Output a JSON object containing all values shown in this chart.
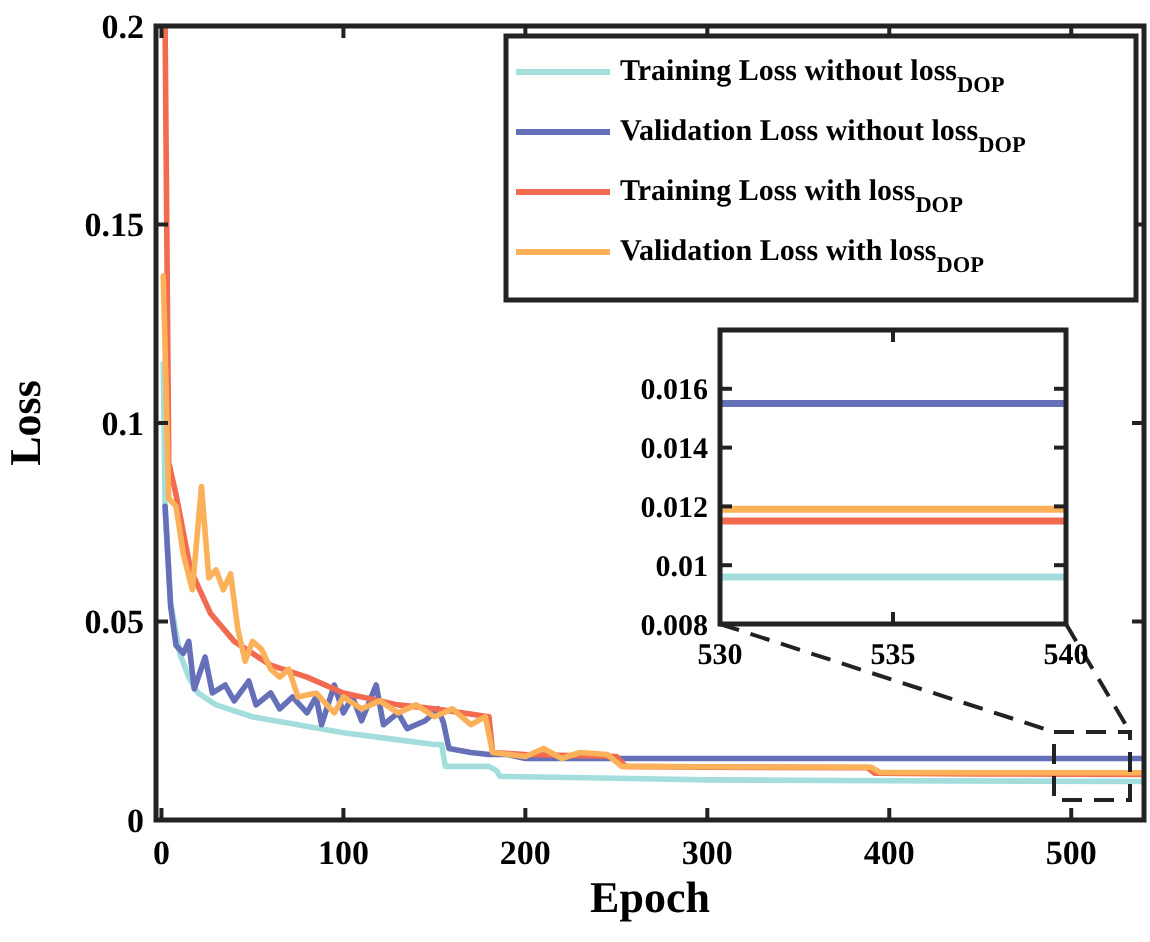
{
  "chart_data": [
    {
      "type": "line",
      "xlabel": "Epoch",
      "ylabel": "Loss",
      "xlim": [
        -3,
        540
      ],
      "ylim": [
        0,
        0.2
      ],
      "xticks": [
        0,
        100,
        200,
        300,
        400,
        500
      ],
      "yticks": [
        0,
        0.05,
        0.1,
        0.15,
        0.2
      ],
      "grid": false,
      "legend": "top right",
      "line_style": "solid",
      "series": [
        {
          "name": "Training Loss without loss$_{DOP}$",
          "color": "#a3dedd",
          "x": [
            1,
            2,
            5,
            10,
            15,
            20,
            30,
            50,
            75,
            100,
            125,
            150,
            154,
            156,
            180,
            184,
            186,
            250,
            300,
            400,
            540
          ],
          "values": [
            0.115,
            0.079,
            0.055,
            0.042,
            0.036,
            0.032,
            0.029,
            0.026,
            0.024,
            0.022,
            0.0205,
            0.019,
            0.019,
            0.0135,
            0.0135,
            0.0125,
            0.011,
            0.0105,
            0.0101,
            0.0099,
            0.0097
          ]
        },
        {
          "name": "Validation Loss without loss$_{DOP}$",
          "color": "#6670b8",
          "x": [
            2,
            5,
            8,
            12,
            15,
            18,
            24,
            28,
            35,
            40,
            48,
            52,
            60,
            65,
            72,
            80,
            85,
            88,
            95,
            100,
            105,
            110,
            118,
            122,
            130,
            135,
            145,
            152,
            155,
            158,
            170,
            180,
            190,
            200,
            300,
            400,
            540
          ],
          "values": [
            0.079,
            0.054,
            0.044,
            0.042,
            0.045,
            0.033,
            0.041,
            0.032,
            0.034,
            0.03,
            0.035,
            0.029,
            0.032,
            0.028,
            0.031,
            0.027,
            0.031,
            0.024,
            0.034,
            0.027,
            0.031,
            0.025,
            0.034,
            0.024,
            0.027,
            0.023,
            0.025,
            0.028,
            0.0245,
            0.018,
            0.017,
            0.0165,
            0.0165,
            0.0155,
            0.0155,
            0.0155,
            0.0155
          ]
        },
        {
          "name": "Training Loss with loss$_{DOP}$",
          "color": "#f26a4f",
          "x": [
            1,
            2,
            4,
            8,
            16,
            27,
            40,
            60,
            80,
            100,
            130,
            150,
            180,
            182,
            200,
            250,
            255,
            300,
            388,
            392,
            450,
            540
          ],
          "values": [
            0.2,
            0.2,
            0.09,
            0.082,
            0.063,
            0.052,
            0.045,
            0.039,
            0.036,
            0.032,
            0.029,
            0.028,
            0.026,
            0.017,
            0.0165,
            0.016,
            0.0135,
            0.0133,
            0.0132,
            0.0118,
            0.0116,
            0.0115
          ]
        },
        {
          "name": "Validation Loss with loss$_{DOP}$",
          "color": "#fbb05a",
          "x": [
            1,
            4,
            8,
            12,
            17,
            22,
            26,
            30,
            34,
            38,
            42,
            46,
            50,
            55,
            60,
            65,
            70,
            75,
            85,
            95,
            100,
            110,
            120,
            130,
            140,
            150,
            160,
            170,
            178,
            182,
            200,
            210,
            220,
            230,
            245,
            253,
            300,
            390,
            395,
            450,
            540
          ],
          "values": [
            0.137,
            0.081,
            0.079,
            0.067,
            0.058,
            0.084,
            0.061,
            0.063,
            0.058,
            0.062,
            0.048,
            0.04,
            0.045,
            0.043,
            0.038,
            0.036,
            0.038,
            0.031,
            0.032,
            0.027,
            0.031,
            0.028,
            0.03,
            0.027,
            0.029,
            0.026,
            0.028,
            0.024,
            0.026,
            0.017,
            0.016,
            0.018,
            0.0155,
            0.017,
            0.0165,
            0.0135,
            0.0134,
            0.0133,
            0.012,
            0.0119,
            0.0119
          ]
        }
      ]
    },
    {
      "type": "line",
      "xlim": [
        530,
        540
      ],
      "ylim": [
        0.008,
        0.018
      ],
      "xticks": [
        530,
        535,
        540
      ],
      "yticks": [
        0.008,
        0.01,
        0.012,
        0.014,
        0.016
      ],
      "grid": false,
      "legend": false,
      "line_style": "solid",
      "series": [
        {
          "color": "#a3dedd",
          "x": [
            530,
            535,
            540
          ],
          "values": [
            0.0096,
            0.0096,
            0.0096
          ]
        },
        {
          "color": "#6670b8",
          "x": [
            530,
            535,
            540
          ],
          "values": [
            0.0155,
            0.0155,
            0.0155
          ]
        },
        {
          "color": "#f26a4f",
          "x": [
            530,
            535,
            540
          ],
          "values": [
            0.0115,
            0.0115,
            0.0115
          ]
        },
        {
          "color": "#fbb05a",
          "x": [
            530,
            535,
            540
          ],
          "values": [
            0.0119,
            0.0119,
            0.0119
          ]
        }
      ]
    }
  ]
}
